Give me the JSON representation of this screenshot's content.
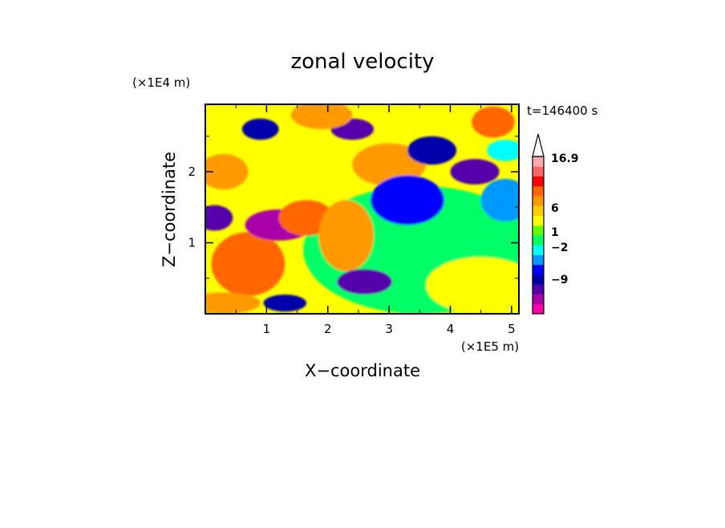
{
  "chart_data": {
    "type": "heatmap",
    "title": "zonal velocity",
    "xlabel": "X−coordinate",
    "ylabel": "Z−coordinate",
    "x_unit_label": "(×1E5 m)",
    "y_unit_label": "(×1E4 m)",
    "time_label": "t=146400 s",
    "xlim": [
      0,
      5.12
    ],
    "ylim": [
      0,
      2.95
    ],
    "x_ticks": [
      "1",
      "2",
      "3",
      "4",
      "5"
    ],
    "y_ticks": [
      "1",
      "2"
    ],
    "colorbar": {
      "labels": [
        "16.9",
        "6",
        "1",
        "−2",
        "−9"
      ],
      "extend_max": true,
      "colors": [
        "#ff00aa",
        "#aa00aa",
        "#5500aa",
        "#0000aa",
        "#0000ff",
        "#0099ff",
        "#00ffff",
        "#00ff66",
        "#66ff00",
        "#ffff00",
        "#ffcc00",
        "#ff9900",
        "#ff6600",
        "#ff0000",
        "#ff6666",
        "#ffaaaa"
      ]
    },
    "features": [
      {
        "x": 3.5,
        "z": 0.9,
        "value": 0,
        "rx": 1.9,
        "rz": 0.9
      },
      {
        "x": 4.5,
        "z": 0.4,
        "value": 1.5,
        "rx": 0.9,
        "rz": 0.4
      },
      {
        "x": 0.7,
        "z": 0.7,
        "value": 6,
        "rx": 0.6,
        "rz": 0.45
      },
      {
        "x": 1.2,
        "z": 1.25,
        "value": -10,
        "rx": 0.55,
        "rz": 0.22
      },
      {
        "x": 0.15,
        "z": 1.35,
        "value": -8,
        "rx": 0.3,
        "rz": 0.18
      },
      {
        "x": 1.65,
        "z": 1.35,
        "value": 7,
        "rx": 0.45,
        "rz": 0.25
      },
      {
        "x": 2.3,
        "z": 1.1,
        "value": 5,
        "rx": 0.45,
        "rz": 0.5
      },
      {
        "x": 2.6,
        "z": 0.45,
        "value": -7,
        "rx": 0.45,
        "rz": 0.18
      },
      {
        "x": 2.4,
        "z": 2.6,
        "value": -7,
        "rx": 0.35,
        "rz": 0.15
      },
      {
        "x": 3.0,
        "z": 2.1,
        "value": 5,
        "rx": 0.6,
        "rz": 0.3
      },
      {
        "x": 3.7,
        "z": 2.3,
        "value": -5,
        "rx": 0.4,
        "rz": 0.2
      },
      {
        "x": 4.4,
        "z": 2.0,
        "value": -8,
        "rx": 0.4,
        "rz": 0.18
      },
      {
        "x": 4.7,
        "z": 2.7,
        "value": 6,
        "rx": 0.35,
        "rz": 0.22
      },
      {
        "x": 0.9,
        "z": 2.6,
        "value": -6,
        "rx": 0.3,
        "rz": 0.15
      },
      {
        "x": 1.9,
        "z": 2.8,
        "value": 5,
        "rx": 0.5,
        "rz": 0.2
      },
      {
        "x": 3.3,
        "z": 1.6,
        "value": -3,
        "rx": 0.6,
        "rz": 0.35
      },
      {
        "x": 0.3,
        "z": 2.0,
        "value": 4,
        "rx": 0.4,
        "rz": 0.25
      },
      {
        "x": 4.9,
        "z": 1.6,
        "value": -2,
        "rx": 0.4,
        "rz": 0.3
      },
      {
        "x": 0.3,
        "z": 0.15,
        "value": 4,
        "rx": 0.6,
        "rz": 0.15
      },
      {
        "x": 1.3,
        "z": 0.15,
        "value": -6,
        "rx": 0.35,
        "rz": 0.12
      },
      {
        "x": 4.9,
        "z": 2.3,
        "value": -1,
        "rx": 0.3,
        "rz": 0.15
      }
    ]
  }
}
